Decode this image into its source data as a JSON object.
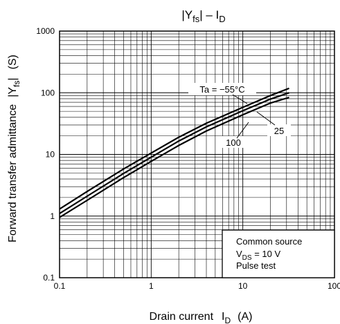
{
  "chart_data": {
    "type": "line",
    "title": {
      "bar1": "|",
      "main": "Y",
      "sub": "fs",
      "bar2": "|",
      "dash": " – I",
      "sub2": "D"
    },
    "xlabel": {
      "text": "Drain current",
      "sym": "I",
      "sub": "D",
      "unit": "(A)"
    },
    "ylabel": {
      "text": "Forward transfer admittance",
      "sym": "|Y",
      "sub": "fs",
      "bar": "|",
      "unit": "(S)"
    },
    "x_scale": "log",
    "y_scale": "log",
    "xlim": [
      0.1,
      100
    ],
    "ylim": [
      0.1,
      1000
    ],
    "grid": true,
    "x_ticks": [
      {
        "value": 0.1,
        "label": "0.1"
      },
      {
        "value": 1,
        "label": "1"
      },
      {
        "value": 10,
        "label": "10"
      },
      {
        "value": 100,
        "label": "100"
      }
    ],
    "y_ticks": [
      {
        "value": 0.1,
        "label": "0.1"
      },
      {
        "value": 1,
        "label": "1"
      },
      {
        "value": 10,
        "label": "10"
      },
      {
        "value": 100,
        "label": "100"
      },
      {
        "value": 1000,
        "label": "1000"
      }
    ],
    "series": [
      {
        "name": "Ta = −55°C",
        "x": [
          0.1,
          0.2,
          0.5,
          1,
          2,
          4,
          10,
          20,
          32
        ],
        "y": [
          1.3,
          2.5,
          5.8,
          10.5,
          19,
          32,
          58,
          90,
          118
        ]
      },
      {
        "name": "25",
        "x": [
          0.1,
          0.2,
          0.5,
          1,
          2,
          4,
          10,
          20,
          32
        ],
        "y": [
          1.1,
          2.1,
          4.9,
          9,
          16.5,
          28,
          51,
          79,
          100
        ]
      },
      {
        "name": "100",
        "x": [
          0.1,
          0.2,
          0.5,
          1,
          2,
          4,
          10,
          20,
          32
        ],
        "y": [
          0.95,
          1.8,
          4.2,
          7.7,
          14,
          24,
          44,
          68,
          84
        ]
      }
    ],
    "legend_box": {
      "line1": "Common source",
      "line2_a": "V",
      "line2_sub": "DS",
      "line2_b": " = 10 V",
      "line3": "Pulse test"
    }
  }
}
